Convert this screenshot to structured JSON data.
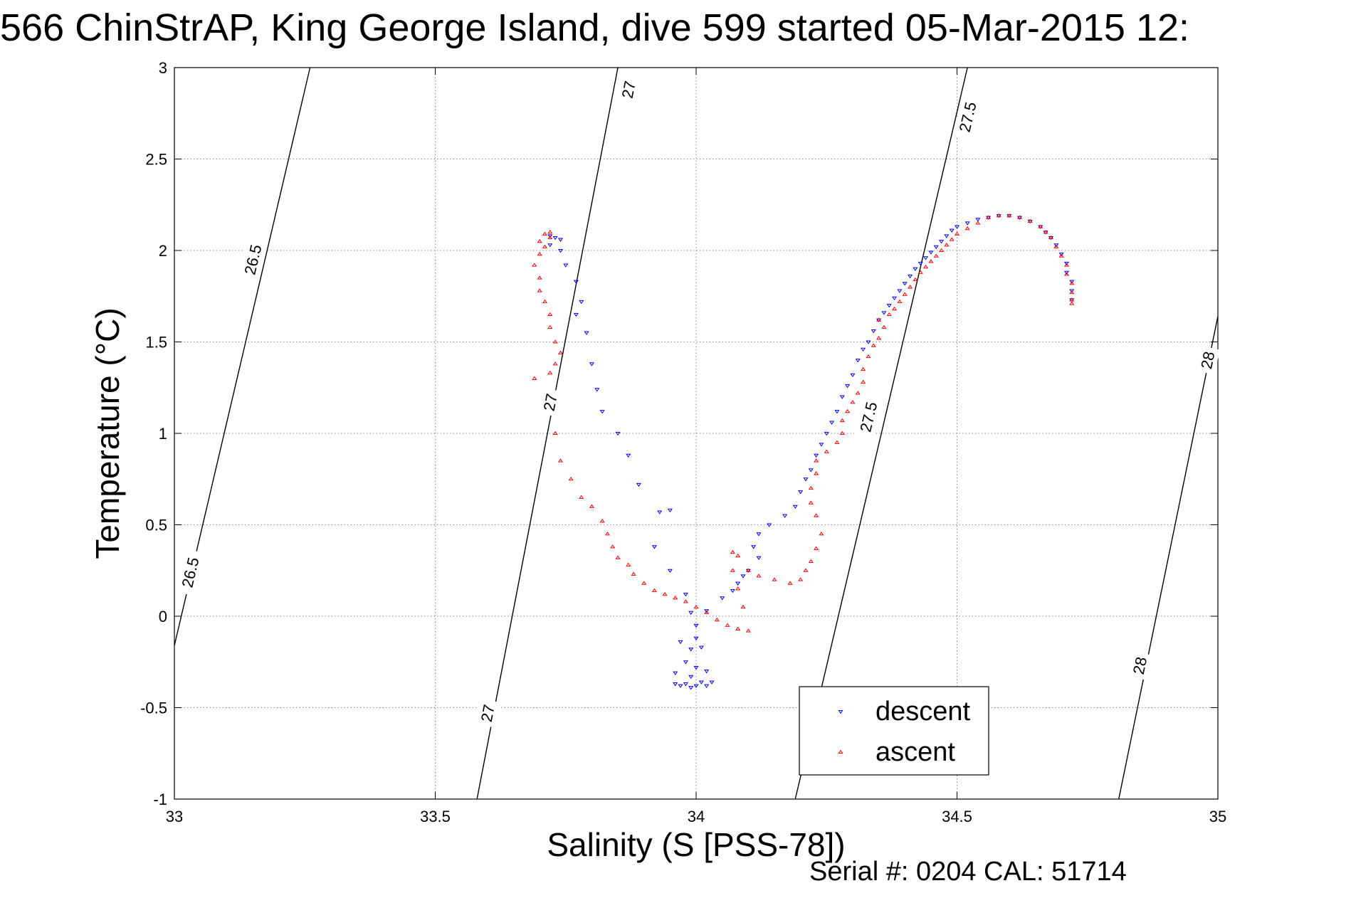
{
  "chart_data": {
    "type": "scatter",
    "title": "566 ChinStrAP, King George Island, dive 599 started 05-Mar-2015 12:",
    "xlabel": "Salinity (S [PSS-78])",
    "ylabel": "Temperature (°C)",
    "xlim": [
      33,
      35
    ],
    "ylim": [
      -1,
      3
    ],
    "xticks": [
      "33",
      "33.5",
      "34",
      "34.5",
      "35"
    ],
    "yticks": [
      "-1",
      "-0.5",
      "0",
      "0.5",
      "1",
      "1.5",
      "2",
      "2.5",
      "3"
    ],
    "grid": true,
    "legend_position": "bottom-right",
    "colors": {
      "descent": "#0000ff",
      "ascent": "#ff0000",
      "contour": "#000000"
    },
    "isopycnals": [
      {
        "label": "26.5",
        "points": [
          [
            33.0,
            -0.16
          ],
          [
            33.26,
            3.0
          ]
        ]
      },
      {
        "label": "27",
        "points": [
          [
            33.58,
            -1.0
          ],
          [
            33.85,
            3.0
          ]
        ]
      },
      {
        "label": "27.5",
        "points": [
          [
            34.19,
            -1.0
          ],
          [
            34.52,
            3.0
          ]
        ]
      },
      {
        "label": "28",
        "points": [
          [
            34.81,
            -1.0
          ],
          [
            35.0,
            1.64
          ]
        ]
      }
    ],
    "isopycnal_labels": [
      {
        "text": "26.5",
        "x": 33.15,
        "y": 1.95
      },
      {
        "text": "26.5",
        "x": 33.03,
        "y": 0.24
      },
      {
        "text": "27",
        "x": 33.87,
        "y": 2.88
      },
      {
        "text": "27",
        "x": 33.72,
        "y": 1.17
      },
      {
        "text": "27",
        "x": 33.6,
        "y": -0.53
      },
      {
        "text": "27.5",
        "x": 34.52,
        "y": 2.73
      },
      {
        "text": "27.5",
        "x": 34.33,
        "y": 1.09
      },
      {
        "text": "28",
        "x": 34.98,
        "y": 1.4
      },
      {
        "text": "28",
        "x": 34.85,
        "y": -0.27
      }
    ],
    "series": [
      {
        "name": "descent",
        "points": [
          [
            33.72,
            2.08
          ],
          [
            33.73,
            2.07
          ],
          [
            33.74,
            2.06
          ],
          [
            33.72,
            2.03
          ],
          [
            33.74,
            2.0
          ],
          [
            33.75,
            1.92
          ],
          [
            33.77,
            1.83
          ],
          [
            33.78,
            1.72
          ],
          [
            33.77,
            1.65
          ],
          [
            33.79,
            1.55
          ],
          [
            33.8,
            1.38
          ],
          [
            33.81,
            1.24
          ],
          [
            33.82,
            1.12
          ],
          [
            33.85,
            1.0
          ],
          [
            33.87,
            0.88
          ],
          [
            33.89,
            0.72
          ],
          [
            33.93,
            0.57
          ],
          [
            33.95,
            0.58
          ],
          [
            33.92,
            0.38
          ],
          [
            33.95,
            0.25
          ],
          [
            33.98,
            0.12
          ],
          [
            33.99,
            0.02
          ],
          [
            34.0,
            -0.05
          ],
          [
            34.0,
            -0.12
          ],
          [
            33.97,
            -0.14
          ],
          [
            33.99,
            -0.18
          ],
          [
            34.01,
            -0.17
          ],
          [
            33.98,
            -0.25
          ],
          [
            34.0,
            -0.28
          ],
          [
            34.02,
            -0.3
          ],
          [
            33.96,
            -0.31
          ],
          [
            33.99,
            -0.33
          ],
          [
            33.96,
            -0.37
          ],
          [
            33.97,
            -0.38
          ],
          [
            33.98,
            -0.37
          ],
          [
            33.99,
            -0.39
          ],
          [
            34.0,
            -0.38
          ],
          [
            34.01,
            -0.36
          ],
          [
            34.02,
            -0.38
          ],
          [
            34.03,
            -0.36
          ],
          [
            34.02,
            0.03
          ],
          [
            34.05,
            0.1
          ],
          [
            34.07,
            0.14
          ],
          [
            34.08,
            0.18
          ],
          [
            34.09,
            0.22
          ],
          [
            34.1,
            0.25
          ],
          [
            34.12,
            0.32
          ],
          [
            34.11,
            0.38
          ],
          [
            34.12,
            0.45
          ],
          [
            34.14,
            0.5
          ],
          [
            34.17,
            0.55
          ],
          [
            34.19,
            0.6
          ],
          [
            34.2,
            0.68
          ],
          [
            34.21,
            0.75
          ],
          [
            34.22,
            0.8
          ],
          [
            34.23,
            0.88
          ],
          [
            34.24,
            0.94
          ],
          [
            34.25,
            1.0
          ],
          [
            34.26,
            1.06
          ],
          [
            34.27,
            1.12
          ],
          [
            34.28,
            1.2
          ],
          [
            34.29,
            1.26
          ],
          [
            34.3,
            1.32
          ],
          [
            34.31,
            1.4
          ],
          [
            34.32,
            1.46
          ],
          [
            34.33,
            1.5
          ],
          [
            34.34,
            1.56
          ],
          [
            34.35,
            1.62
          ],
          [
            34.36,
            1.66
          ],
          [
            34.37,
            1.7
          ],
          [
            34.38,
            1.74
          ],
          [
            34.39,
            1.78
          ],
          [
            34.4,
            1.82
          ],
          [
            34.41,
            1.86
          ],
          [
            34.42,
            1.9
          ],
          [
            34.43,
            1.93
          ],
          [
            34.44,
            1.96
          ],
          [
            34.45,
            1.99
          ],
          [
            34.46,
            2.02
          ],
          [
            34.47,
            2.05
          ],
          [
            34.48,
            2.08
          ],
          [
            34.49,
            2.11
          ],
          [
            34.5,
            2.13
          ],
          [
            34.52,
            2.15
          ],
          [
            34.54,
            2.17
          ],
          [
            34.56,
            2.18
          ],
          [
            34.58,
            2.19
          ],
          [
            34.6,
            2.19
          ],
          [
            34.62,
            2.18
          ],
          [
            34.64,
            2.16
          ],
          [
            34.66,
            2.13
          ],
          [
            34.67,
            2.1
          ],
          [
            34.68,
            2.07
          ],
          [
            34.69,
            2.03
          ],
          [
            34.7,
            1.98
          ],
          [
            34.71,
            1.93
          ],
          [
            34.71,
            1.88
          ],
          [
            34.72,
            1.83
          ],
          [
            34.72,
            1.78
          ],
          [
            34.72,
            1.73
          ]
        ]
      },
      {
        "name": "ascent",
        "points": [
          [
            33.72,
            2.1
          ],
          [
            33.71,
            2.09
          ],
          [
            33.72,
            2.07
          ],
          [
            33.7,
            2.05
          ],
          [
            33.71,
            2.02
          ],
          [
            33.7,
            1.98
          ],
          [
            33.69,
            1.92
          ],
          [
            33.7,
            1.85
          ],
          [
            33.7,
            1.78
          ],
          [
            33.71,
            1.72
          ],
          [
            33.72,
            1.65
          ],
          [
            33.72,
            1.58
          ],
          [
            33.73,
            1.5
          ],
          [
            33.74,
            1.44
          ],
          [
            33.73,
            1.38
          ],
          [
            33.72,
            1.33
          ],
          [
            33.69,
            1.3
          ],
          [
            33.73,
            1.0
          ],
          [
            33.74,
            0.85
          ],
          [
            33.76,
            0.75
          ],
          [
            33.78,
            0.65
          ],
          [
            33.8,
            0.6
          ],
          [
            33.82,
            0.52
          ],
          [
            33.83,
            0.45
          ],
          [
            33.84,
            0.38
          ],
          [
            33.85,
            0.32
          ],
          [
            33.87,
            0.28
          ],
          [
            33.88,
            0.23
          ],
          [
            33.9,
            0.18
          ],
          [
            33.92,
            0.14
          ],
          [
            33.94,
            0.12
          ],
          [
            33.96,
            0.1
          ],
          [
            33.98,
            0.08
          ],
          [
            34.0,
            0.05
          ],
          [
            34.02,
            0.02
          ],
          [
            34.04,
            -0.02
          ],
          [
            34.06,
            -0.05
          ],
          [
            34.08,
            -0.07
          ],
          [
            34.1,
            -0.08
          ],
          [
            34.09,
            0.05
          ],
          [
            34.08,
            0.15
          ],
          [
            34.07,
            0.25
          ],
          [
            34.07,
            0.35
          ],
          [
            34.08,
            0.33
          ],
          [
            34.1,
            0.25
          ],
          [
            34.12,
            0.22
          ],
          [
            34.15,
            0.2
          ],
          [
            34.18,
            0.18
          ],
          [
            34.2,
            0.2
          ],
          [
            34.21,
            0.25
          ],
          [
            34.22,
            0.3
          ],
          [
            34.23,
            0.37
          ],
          [
            34.24,
            0.45
          ],
          [
            34.23,
            0.55
          ],
          [
            34.22,
            0.62
          ],
          [
            34.22,
            0.7
          ],
          [
            34.23,
            0.78
          ],
          [
            34.23,
            0.85
          ],
          [
            34.25,
            0.9
          ],
          [
            34.27,
            0.95
          ],
          [
            34.28,
            1.0
          ],
          [
            34.28,
            1.07
          ],
          [
            34.29,
            1.12
          ],
          [
            34.3,
            1.17
          ],
          [
            34.31,
            1.22
          ],
          [
            34.32,
            1.28
          ],
          [
            34.32,
            1.35
          ],
          [
            34.33,
            1.42
          ],
          [
            34.34,
            1.48
          ],
          [
            34.35,
            1.52
          ],
          [
            34.36,
            1.58
          ],
          [
            34.35,
            1.62
          ],
          [
            34.37,
            1.65
          ],
          [
            34.38,
            1.68
          ],
          [
            34.39,
            1.72
          ],
          [
            34.4,
            1.76
          ],
          [
            34.41,
            1.8
          ],
          [
            34.42,
            1.84
          ],
          [
            34.43,
            1.88
          ],
          [
            34.44,
            1.91
          ],
          [
            34.45,
            1.94
          ],
          [
            34.46,
            1.97
          ],
          [
            34.47,
            2.0
          ],
          [
            34.48,
            2.03
          ],
          [
            34.49,
            2.06
          ],
          [
            34.5,
            2.09
          ],
          [
            34.52,
            2.12
          ],
          [
            34.54,
            2.15
          ],
          [
            34.56,
            2.18
          ],
          [
            34.58,
            2.19
          ],
          [
            34.6,
            2.19
          ],
          [
            34.62,
            2.18
          ],
          [
            34.64,
            2.16
          ],
          [
            34.66,
            2.13
          ],
          [
            34.67,
            2.1
          ],
          [
            34.68,
            2.07
          ],
          [
            34.69,
            2.02
          ],
          [
            34.7,
            1.97
          ],
          [
            34.71,
            1.92
          ],
          [
            34.71,
            1.87
          ],
          [
            34.72,
            1.82
          ],
          [
            34.72,
            1.77
          ],
          [
            34.72,
            1.73
          ],
          [
            34.72,
            1.71
          ]
        ]
      }
    ]
  },
  "footer": {
    "serial": "Serial #: 0204  CAL: 51714"
  }
}
